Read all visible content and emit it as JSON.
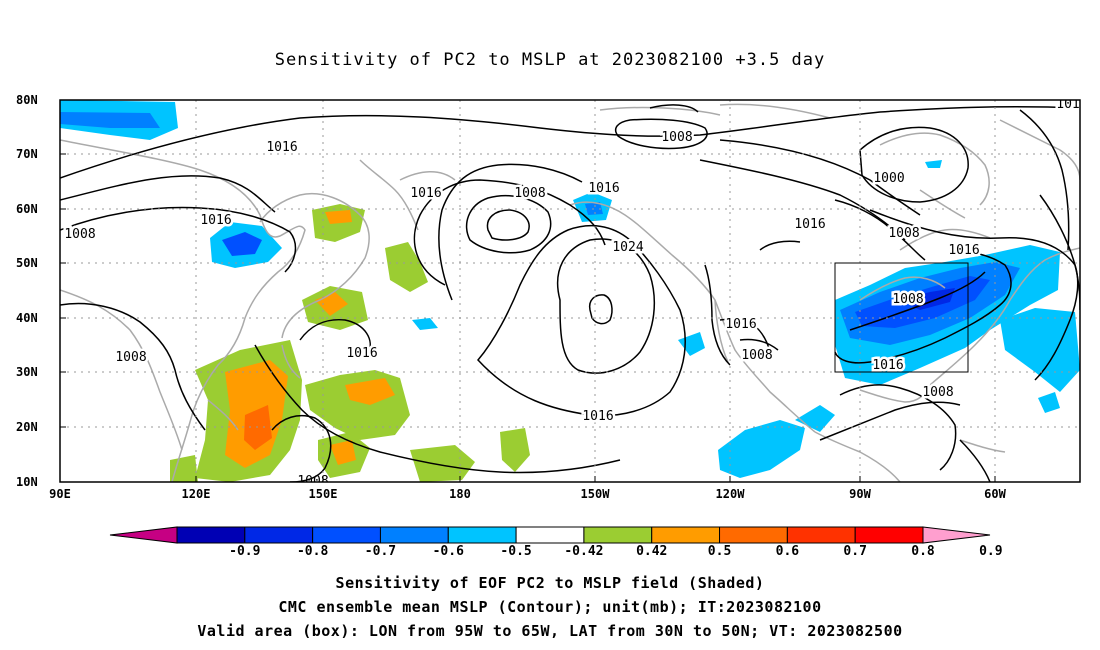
{
  "title": "Sensitivity of PC2 to MSLP at 2023082100 +3.5 day",
  "lat_ticks": [
    "80N",
    "70N",
    "60N",
    "50N",
    "40N",
    "30N",
    "20N",
    "10N"
  ],
  "lon_ticks": [
    "90E",
    "120E",
    "150E",
    "180",
    "150W",
    "120W",
    "90W",
    "60W"
  ],
  "contour_labels": [
    "1016",
    "1016",
    "1008",
    "1008",
    "1016",
    "1024",
    "1016",
    "1016",
    "1016",
    "1008",
    "1016",
    "1008",
    "1000",
    "1008",
    "1016",
    "1008",
    "1016",
    "1008",
    "1008",
    "101"
  ],
  "colorbar": {
    "labels": [
      "-0.9",
      "-0.8",
      "-0.7",
      "-0.6",
      "-0.5",
      "-0.42",
      "0.42",
      "0.5",
      "0.6",
      "0.7",
      "0.8",
      "0.9"
    ],
    "colors": [
      "#c60083",
      "#0000b4",
      "#0028e6",
      "#0050ff",
      "#0080ff",
      "#00c4ff",
      "#ffffff",
      "#9bcd32",
      "#ff9c00",
      "#ff6a00",
      "#ff3200",
      "#ff0000",
      "#ff9fcf"
    ]
  },
  "captions": [
    "Sensitivity of EOF PC2 to MSLP field (Shaded)",
    "CMC ensemble mean MSLP (Contour); unit(mb); IT:2023082100",
    "Valid area (box): LON from 95W to 65W, LAT from 30N to 50N; VT: 2023082500"
  ]
}
